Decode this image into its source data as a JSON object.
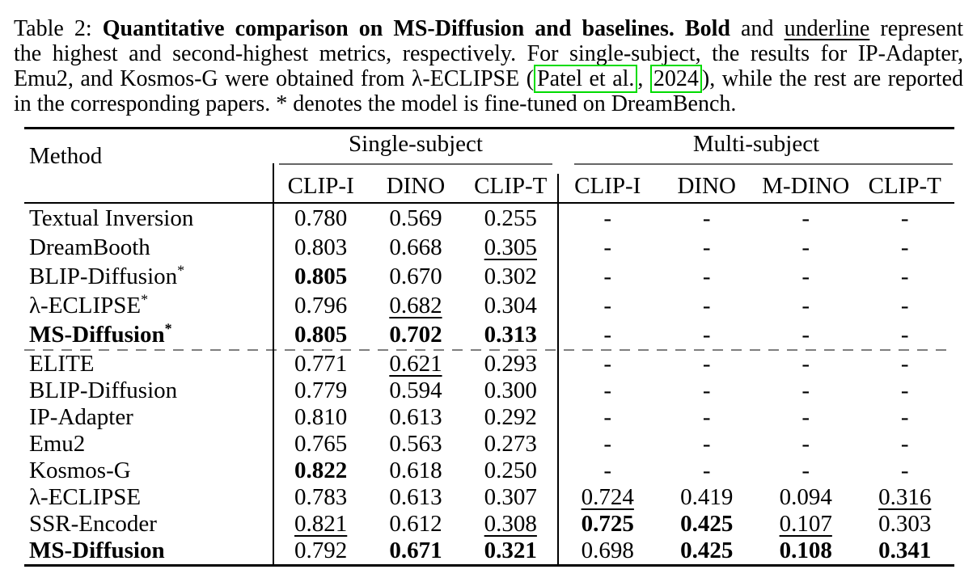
{
  "colors": {
    "citation_box": "#00dc00",
    "dashed_divider": "#7f7f7f",
    "text": "#000000",
    "background": "#ffffff"
  },
  "caption": {
    "lines": [
      {
        "justify": true,
        "segments": [
          {
            "style": "normal",
            "text": "Table 2: "
          },
          {
            "style": "bold",
            "text": "Quantitative comparison on MS-Diffusion and baselines. Bold"
          },
          {
            "style": "normal",
            "text": " and "
          },
          {
            "style": "underline",
            "text": "underline"
          },
          {
            "style": "normal",
            "text": " represent"
          }
        ]
      },
      {
        "justify": true,
        "segments": [
          {
            "style": "normal",
            "text": "the highest and second-highest metrics, respectively. For single-subject, the results for IP-Adapter,"
          }
        ]
      },
      {
        "justify": true,
        "segments": [
          {
            "style": "normal",
            "text": "Emu2, and Kosmos-G were obtained from λ-ECLIPSE ("
          },
          {
            "style": "citebox",
            "text": "Patel et al."
          },
          {
            "style": "normal",
            "text": ", "
          },
          {
            "style": "citebox",
            "text": "2024"
          },
          {
            "style": "normal",
            "text": "), while the rest are reported"
          }
        ]
      },
      {
        "justify": false,
        "segments": [
          {
            "style": "normal",
            "text": "in the corresponding papers. * denotes the model is fine-tuned on DreamBench."
          }
        ]
      }
    ]
  },
  "table": {
    "method_header": "Method",
    "groups": [
      {
        "label": "Single-subject",
        "cols": [
          "CLIP-I",
          "DINO",
          "CLIP-T"
        ]
      },
      {
        "label": "Multi-subject",
        "cols": [
          "CLIP-I",
          "DINO",
          "M-DINO",
          "CLIP-T"
        ]
      }
    ],
    "rows_finetuned": [
      {
        "method": "Textual Inversion",
        "sup": "",
        "bold": false,
        "cells": [
          {
            "v": "0.780",
            "s": "n"
          },
          {
            "v": "0.569",
            "s": "n"
          },
          {
            "v": "0.255",
            "s": "n"
          },
          {
            "v": "-",
            "s": "n"
          },
          {
            "v": "-",
            "s": "n"
          },
          {
            "v": "-",
            "s": "n"
          },
          {
            "v": "-",
            "s": "n"
          }
        ]
      },
      {
        "method": "DreamBooth",
        "sup": "",
        "bold": false,
        "cells": [
          {
            "v": "0.803",
            "s": "n"
          },
          {
            "v": "0.668",
            "s": "n"
          },
          {
            "v": "0.305",
            "s": "u"
          },
          {
            "v": "-",
            "s": "n"
          },
          {
            "v": "-",
            "s": "n"
          },
          {
            "v": "-",
            "s": "n"
          },
          {
            "v": "-",
            "s": "n"
          }
        ]
      },
      {
        "method": "BLIP-Diffusion",
        "sup": "*",
        "bold": false,
        "cells": [
          {
            "v": "0.805",
            "s": "b"
          },
          {
            "v": "0.670",
            "s": "n"
          },
          {
            "v": "0.302",
            "s": "n"
          },
          {
            "v": "-",
            "s": "n"
          },
          {
            "v": "-",
            "s": "n"
          },
          {
            "v": "-",
            "s": "n"
          },
          {
            "v": "-",
            "s": "n"
          }
        ]
      },
      {
        "method": "λ-ECLIPSE",
        "sup": "*",
        "bold": false,
        "cells": [
          {
            "v": "0.796",
            "s": "n"
          },
          {
            "v": "0.682",
            "s": "u"
          },
          {
            "v": "0.304",
            "s": "n"
          },
          {
            "v": "-",
            "s": "n"
          },
          {
            "v": "-",
            "s": "n"
          },
          {
            "v": "-",
            "s": "n"
          },
          {
            "v": "-",
            "s": "n"
          }
        ]
      },
      {
        "method": "MS-Diffusion",
        "sup": "*",
        "bold": true,
        "cells": [
          {
            "v": "0.805",
            "s": "b"
          },
          {
            "v": "0.702",
            "s": "b"
          },
          {
            "v": "0.313",
            "s": "b"
          },
          {
            "v": "-",
            "s": "n"
          },
          {
            "v": "-",
            "s": "n"
          },
          {
            "v": "-",
            "s": "n"
          },
          {
            "v": "-",
            "s": "n"
          }
        ]
      }
    ],
    "rows_zeroshot": [
      {
        "method": "ELITE",
        "sup": "",
        "bold": false,
        "cells": [
          {
            "v": "0.771",
            "s": "n"
          },
          {
            "v": "0.621",
            "s": "u"
          },
          {
            "v": "0.293",
            "s": "n"
          },
          {
            "v": "-",
            "s": "n"
          },
          {
            "v": "-",
            "s": "n"
          },
          {
            "v": "-",
            "s": "n"
          },
          {
            "v": "-",
            "s": "n"
          }
        ]
      },
      {
        "method": "BLIP-Diffusion",
        "sup": "",
        "bold": false,
        "cells": [
          {
            "v": "0.779",
            "s": "n"
          },
          {
            "v": "0.594",
            "s": "n"
          },
          {
            "v": "0.300",
            "s": "n"
          },
          {
            "v": "-",
            "s": "n"
          },
          {
            "v": "-",
            "s": "n"
          },
          {
            "v": "-",
            "s": "n"
          },
          {
            "v": "-",
            "s": "n"
          }
        ]
      },
      {
        "method": "IP-Adapter",
        "sup": "",
        "bold": false,
        "cells": [
          {
            "v": "0.810",
            "s": "n"
          },
          {
            "v": "0.613",
            "s": "n"
          },
          {
            "v": "0.292",
            "s": "n"
          },
          {
            "v": "-",
            "s": "n"
          },
          {
            "v": "-",
            "s": "n"
          },
          {
            "v": "-",
            "s": "n"
          },
          {
            "v": "-",
            "s": "n"
          }
        ]
      },
      {
        "method": "Emu2",
        "sup": "",
        "bold": false,
        "cells": [
          {
            "v": "0.765",
            "s": "n"
          },
          {
            "v": "0.563",
            "s": "n"
          },
          {
            "v": "0.273",
            "s": "n"
          },
          {
            "v": "-",
            "s": "n"
          },
          {
            "v": "-",
            "s": "n"
          },
          {
            "v": "-",
            "s": "n"
          },
          {
            "v": "-",
            "s": "n"
          }
        ]
      },
      {
        "method": "Kosmos-G",
        "sup": "",
        "bold": false,
        "cells": [
          {
            "v": "0.822",
            "s": "b"
          },
          {
            "v": "0.618",
            "s": "n"
          },
          {
            "v": "0.250",
            "s": "n"
          },
          {
            "v": "-",
            "s": "n"
          },
          {
            "v": "-",
            "s": "n"
          },
          {
            "v": "-",
            "s": "n"
          },
          {
            "v": "-",
            "s": "n"
          }
        ]
      },
      {
        "method": "λ-ECLIPSE",
        "sup": "",
        "bold": false,
        "cells": [
          {
            "v": "0.783",
            "s": "n"
          },
          {
            "v": "0.613",
            "s": "n"
          },
          {
            "v": "0.307",
            "s": "n"
          },
          {
            "v": "0.724",
            "s": "u"
          },
          {
            "v": "0.419",
            "s": "n"
          },
          {
            "v": "0.094",
            "s": "n"
          },
          {
            "v": "0.316",
            "s": "u"
          }
        ]
      },
      {
        "method": "SSR-Encoder",
        "sup": "",
        "bold": false,
        "cells": [
          {
            "v": "0.821",
            "s": "u"
          },
          {
            "v": "0.612",
            "s": "n"
          },
          {
            "v": "0.308",
            "s": "u"
          },
          {
            "v": "0.725",
            "s": "b"
          },
          {
            "v": "0.425",
            "s": "b"
          },
          {
            "v": "0.107",
            "s": "u"
          },
          {
            "v": "0.303",
            "s": "n"
          }
        ]
      },
      {
        "method": "MS-Diffusion",
        "sup": "",
        "bold": true,
        "cells": [
          {
            "v": "0.792",
            "s": "n"
          },
          {
            "v": "0.671",
            "s": "b"
          },
          {
            "v": "0.321",
            "s": "b"
          },
          {
            "v": "0.698",
            "s": "n"
          },
          {
            "v": "0.425",
            "s": "b"
          },
          {
            "v": "0.108",
            "s": "b"
          },
          {
            "v": "0.341",
            "s": "b"
          }
        ]
      }
    ]
  }
}
